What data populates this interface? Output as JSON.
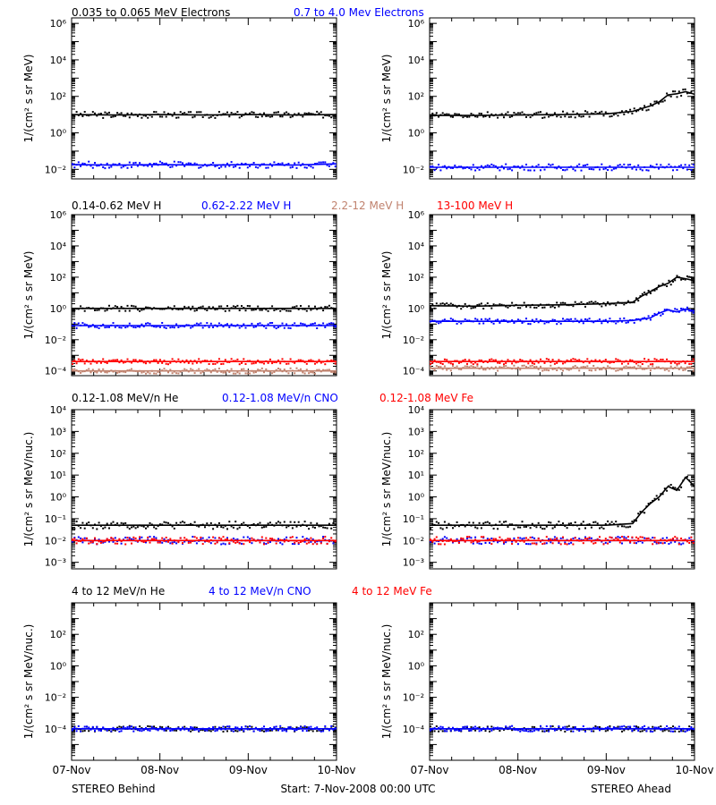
{
  "footer": {
    "left": "STEREO Behind",
    "center": "Start:  7-Nov-2008 00:00 UTC",
    "right": "STEREO Ahead"
  },
  "x_ticks": [
    "07-Nov",
    "08-Nov",
    "09-Nov",
    "10-Nov"
  ],
  "colors": {
    "black": "#000000",
    "blue": "#0000ff",
    "tan": "#c0826e",
    "red": "#ff0000"
  },
  "chart_data": [
    {
      "type": "scatter",
      "row": 0,
      "ylabel": "1/(cm² s sr MeV)",
      "yscale": "log",
      "ylim": [
        0.003,
        2000000
      ],
      "ytick_exponents": [
        -2,
        0,
        2,
        4,
        6
      ],
      "legend": [
        {
          "text": "0.035 to 0.065 MeV Electrons",
          "color": "#000000"
        },
        {
          "text": "0.7 to 4.0 Mev Electrons",
          "color": "#0000ff"
        }
      ],
      "xlim_days": [
        0,
        3
      ],
      "panels": [
        {
          "name": "STEREO Behind",
          "series": [
            {
              "name": "0.035 to 0.065 MeV Electrons",
              "color": "#000000",
              "points": [
                [
                  0,
                  10
                ],
                [
                  0.5,
                  9.5
                ],
                [
                  1.0,
                  10
                ],
                [
                  1.5,
                  9.5
                ],
                [
                  2.0,
                  10
                ],
                [
                  2.5,
                  9.5
                ],
                [
                  3.0,
                  10
                ]
              ]
            },
            {
              "name": "0.7 to 4.0 Mev Electrons",
              "color": "#0000ff",
              "points": [
                [
                  0,
                  0.018
                ],
                [
                  0.5,
                  0.017
                ],
                [
                  1.0,
                  0.018
                ],
                [
                  1.5,
                  0.017
                ],
                [
                  2.0,
                  0.018
                ],
                [
                  2.5,
                  0.017
                ],
                [
                  3.0,
                  0.02
                ]
              ]
            }
          ]
        },
        {
          "name": "STEREO Ahead",
          "series": [
            {
              "name": "0.035 to 0.065 MeV Electrons",
              "color": "#000000",
              "points": [
                [
                  0,
                  9
                ],
                [
                  0.5,
                  9
                ],
                [
                  1.0,
                  9.5
                ],
                [
                  1.5,
                  10
                ],
                [
                  2.0,
                  11
                ],
                [
                  2.3,
                  15
                ],
                [
                  2.5,
                  30
                ],
                [
                  2.6,
                  50
                ],
                [
                  2.7,
                  120
                ],
                [
                  2.8,
                  140
                ],
                [
                  2.9,
                  180
                ],
                [
                  3.0,
                  130
                ]
              ]
            },
            {
              "name": "0.7 to 4.0 Mev Electrons",
              "color": "#0000ff",
              "points": [
                [
                  0,
                  0.013
                ],
                [
                  0.5,
                  0.013
                ],
                [
                  1.0,
                  0.013
                ],
                [
                  1.5,
                  0.013
                ],
                [
                  2.0,
                  0.013
                ],
                [
                  2.5,
                  0.013
                ],
                [
                  3.0,
                  0.013
                ]
              ]
            }
          ]
        }
      ]
    },
    {
      "type": "scatter",
      "row": 1,
      "ylabel": "1/(cm² s sr MeV)",
      "yscale": "log",
      "ylim": [
        5e-05,
        1000000
      ],
      "ytick_exponents": [
        -4,
        -2,
        0,
        2,
        4,
        6
      ],
      "legend": [
        {
          "text": "0.14-0.62 MeV H",
          "color": "#000000"
        },
        {
          "text": "0.62-2.22 MeV H",
          "color": "#0000ff"
        },
        {
          "text": "2.2-12 MeV H",
          "color": "#c0826e"
        },
        {
          "text": "13-100 MeV H",
          "color": "#ff0000"
        }
      ],
      "xlim_days": [
        0,
        3
      ],
      "panels": [
        {
          "name": "STEREO Behind",
          "series": [
            {
              "name": "0.14-0.62 MeV H",
              "color": "#000000",
              "points": [
                [
                  0,
                  1.0
                ],
                [
                  1.0,
                  1.0
                ],
                [
                  2.0,
                  1.0
                ],
                [
                  3.0,
                  1.0
                ]
              ]
            },
            {
              "name": "0.62-2.22 MeV H",
              "color": "#0000ff",
              "points": [
                [
                  0,
                  0.08
                ],
                [
                  1.0,
                  0.08
                ],
                [
                  2.0,
                  0.08
                ],
                [
                  3.0,
                  0.08
                ]
              ]
            },
            {
              "name": "2.2-12 MeV H",
              "color": "#c0826e",
              "points": [
                [
                  0,
                  0.0001
                ],
                [
                  1.0,
                  0.0001
                ],
                [
                  2.0,
                  0.0001
                ],
                [
                  3.0,
                  0.0001
                ]
              ]
            },
            {
              "name": "13-100 MeV H",
              "color": "#ff0000",
              "points": [
                [
                  0,
                  0.0004
                ],
                [
                  1.0,
                  0.0004
                ],
                [
                  2.0,
                  0.0004
                ],
                [
                  3.0,
                  0.0004
                ]
              ]
            }
          ]
        },
        {
          "name": "STEREO Ahead",
          "series": [
            {
              "name": "0.14-0.62 MeV H",
              "color": "#000000",
              "points": [
                [
                  0,
                  1.5
                ],
                [
                  0.5,
                  1.4
                ],
                [
                  1.0,
                  1.6
                ],
                [
                  1.5,
                  1.7
                ],
                [
                  2.0,
                  2.0
                ],
                [
                  2.3,
                  2.5
                ],
                [
                  2.4,
                  6
                ],
                [
                  2.5,
                  12
                ],
                [
                  2.6,
                  25
                ],
                [
                  2.7,
                  40
                ],
                [
                  2.8,
                  100
                ],
                [
                  2.9,
                  80
                ],
                [
                  3.0,
                  60
                ]
              ]
            },
            {
              "name": "0.62-2.22 MeV H",
              "color": "#0000ff",
              "points": [
                [
                  0,
                  0.15
                ],
                [
                  1.0,
                  0.15
                ],
                [
                  2.0,
                  0.15
                ],
                [
                  2.3,
                  0.17
                ],
                [
                  2.5,
                  0.25
                ],
                [
                  2.6,
                  0.5
                ],
                [
                  2.7,
                  0.8
                ],
                [
                  2.8,
                  0.6
                ],
                [
                  2.9,
                  0.9
                ],
                [
                  3.0,
                  0.7
                ]
              ]
            },
            {
              "name": "2.2-12 MeV H",
              "color": "#c0826e",
              "points": [
                [
                  0,
                  0.00015
                ],
                [
                  1.0,
                  0.00015
                ],
                [
                  2.0,
                  0.00015
                ],
                [
                  3.0,
                  0.00015
                ]
              ]
            },
            {
              "name": "13-100 MeV H",
              "color": "#ff0000",
              "points": [
                [
                  0,
                  0.0004
                ],
                [
                  1.0,
                  0.0004
                ],
                [
                  2.0,
                  0.0004
                ],
                [
                  3.0,
                  0.0004
                ]
              ]
            }
          ]
        }
      ]
    },
    {
      "type": "scatter",
      "row": 2,
      "ylabel": "1/(cm² s sr MeV/nuc.)",
      "yscale": "log",
      "ylim": [
        0.0005,
        10000
      ],
      "ytick_exponents": [
        -3,
        -2,
        -1,
        0,
        1,
        2,
        3,
        4
      ],
      "legend": [
        {
          "text": "0.12-1.08 MeV/n He",
          "color": "#000000"
        },
        {
          "text": "0.12-1.08 MeV/n CNO",
          "color": "#0000ff"
        },
        {
          "text": "0.12-1.08 MeV Fe",
          "color": "#ff0000"
        }
      ],
      "xlim_days": [
        0,
        3
      ],
      "panels": [
        {
          "name": "STEREO Behind",
          "series": [
            {
              "name": "0.12-1.08 MeV/n He",
              "color": "#000000",
              "points": [
                [
                  0,
                  0.05
                ],
                [
                  1.0,
                  0.05
                ],
                [
                  2.0,
                  0.05
                ],
                [
                  3.0,
                  0.05
                ]
              ]
            },
            {
              "name": "0.12-1.08 MeV/n CNO",
              "color": "#0000ff",
              "points": [
                [
                  0,
                  0.01
                ],
                [
                  1.0,
                  0.01
                ],
                [
                  2.0,
                  0.01
                ],
                [
                  3.0,
                  0.01
                ]
              ]
            },
            {
              "name": "0.12-1.08 MeV Fe",
              "color": "#ff0000",
              "points": [
                [
                  0,
                  0.01
                ],
                [
                  1.0,
                  0.01
                ],
                [
                  2.0,
                  0.01
                ],
                [
                  3.0,
                  0.01
                ]
              ]
            }
          ]
        },
        {
          "name": "STEREO Ahead",
          "series": [
            {
              "name": "0.12-1.08 MeV/n He",
              "color": "#000000",
              "points": [
                [
                  0,
                  0.05
                ],
                [
                  1.0,
                  0.05
                ],
                [
                  2.0,
                  0.05
                ],
                [
                  2.3,
                  0.06
                ],
                [
                  2.4,
                  0.2
                ],
                [
                  2.5,
                  0.5
                ],
                [
                  2.6,
                  1.0
                ],
                [
                  2.7,
                  3.0
                ],
                [
                  2.8,
                  2.0
                ],
                [
                  2.9,
                  8.0
                ],
                [
                  3.0,
                  3.0
                ]
              ]
            },
            {
              "name": "0.12-1.08 MeV/n CNO",
              "color": "#0000ff",
              "points": [
                [
                  0,
                  0.01
                ],
                [
                  1.0,
                  0.01
                ],
                [
                  2.0,
                  0.01
                ],
                [
                  3.0,
                  0.01
                ]
              ]
            },
            {
              "name": "0.12-1.08 MeV Fe",
              "color": "#ff0000",
              "points": [
                [
                  0,
                  0.01
                ],
                [
                  1.0,
                  0.01
                ],
                [
                  2.0,
                  0.01
                ],
                [
                  3.0,
                  0.01
                ]
              ]
            }
          ]
        }
      ]
    },
    {
      "type": "scatter",
      "row": 3,
      "ylabel": "1/(cm² s sr MeV/nuc.)",
      "yscale": "log",
      "ylim": [
        1e-06,
        10000
      ],
      "ytick_exponents": [
        -4,
        -2,
        0,
        2
      ],
      "legend": [
        {
          "text": "4 to 12 MeV/n He",
          "color": "#000000"
        },
        {
          "text": "4 to 12 MeV/n CNO",
          "color": "#0000ff"
        },
        {
          "text": "4 to 12 MeV Fe",
          "color": "#ff0000"
        }
      ],
      "xlim_days": [
        0,
        3
      ],
      "panels": [
        {
          "name": "STEREO Behind",
          "series": [
            {
              "name": "4 to 12 MeV/n He",
              "color": "#000000",
              "points": [
                [
                  0,
                  0.0001
                ],
                [
                  1.0,
                  0.0001
                ],
                [
                  2.0,
                  0.0001
                ],
                [
                  3.0,
                  0.0001
                ]
              ]
            },
            {
              "name": "4 to 12 MeV/n CNO",
              "color": "#0000ff",
              "points": [
                [
                  0,
                  0.0001
                ],
                [
                  1.0,
                  0.0001
                ],
                [
                  2.0,
                  0.0001
                ],
                [
                  3.0,
                  0.0001
                ]
              ]
            }
          ]
        },
        {
          "name": "STEREO Ahead",
          "series": [
            {
              "name": "4 to 12 MeV/n He",
              "color": "#000000",
              "points": [
                [
                  0,
                  0.0001
                ],
                [
                  1.0,
                  0.0001
                ],
                [
                  2.0,
                  0.0001
                ],
                [
                  3.0,
                  0.0001
                ]
              ]
            },
            {
              "name": "4 to 12 MeV/n CNO",
              "color": "#0000ff",
              "points": [
                [
                  0,
                  0.0001
                ],
                [
                  1.0,
                  0.0001
                ],
                [
                  2.0,
                  0.0001
                ],
                [
                  3.0,
                  0.0001
                ]
              ]
            }
          ]
        }
      ]
    }
  ]
}
